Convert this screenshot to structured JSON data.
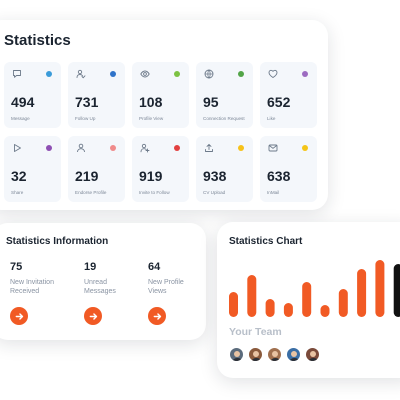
{
  "stats": {
    "title": "Statistics",
    "tiles": [
      {
        "icon": "chat-icon",
        "value": "494",
        "label": "Message",
        "dot_color": "#3a9bd9"
      },
      {
        "icon": "user-check-icon",
        "value": "731",
        "label": "Follow Up",
        "dot_color": "#2f73c9"
      },
      {
        "icon": "eye-icon",
        "value": "108",
        "label": "Profile View",
        "dot_color": "#7cc242"
      },
      {
        "icon": "globe-icon",
        "value": "95",
        "label": "Connection Request",
        "dot_color": "#52a447"
      },
      {
        "icon": "heart-icon",
        "value": "652",
        "label": "Like",
        "dot_color": "#9c6bc1"
      },
      {
        "icon": "play-icon",
        "value": "32",
        "label": "Share",
        "dot_color": "#8e4fb3"
      },
      {
        "icon": "user-icon",
        "value": "219",
        "label": "Endorse Profile",
        "dot_color": "#f08b8b"
      },
      {
        "icon": "user-plus-icon",
        "value": "919",
        "label": "Invite to Follow",
        "dot_color": "#e24040"
      },
      {
        "icon": "upload-icon",
        "value": "938",
        "label": "CV Upload",
        "dot_color": "#f7c21a"
      },
      {
        "icon": "mail-icon",
        "value": "638",
        "label": "InMail",
        "dot_color": "#f5c518"
      }
    ]
  },
  "info": {
    "title": "Statistics Information",
    "items": [
      {
        "value": "75",
        "label_line1": "New Invitation",
        "label_line2": "Received"
      },
      {
        "value": "19",
        "label_line1": "Unread",
        "label_line2": "Messages"
      },
      {
        "value": "64",
        "label_line1": "New Profile",
        "label_line2": "Views"
      }
    ],
    "button_icon": "arrow-right-icon",
    "accent": "#f15a24"
  },
  "chart": {
    "title": "Statistics Chart",
    "team_title": "Your Team"
  },
  "chart_data": {
    "type": "bar",
    "title": "Statistics Chart",
    "values": [
      25,
      42,
      18,
      14,
      35,
      12,
      28,
      48,
      57,
      53
    ],
    "colors": [
      "#f15a24",
      "#f15a24",
      "#f15a24",
      "#f15a24",
      "#f15a24",
      "#f15a24",
      "#f15a24",
      "#f15a24",
      "#f15a24",
      "#111111"
    ],
    "ylim": [
      0,
      60
    ],
    "grid": false
  },
  "team": [
    {
      "name": "avatar-1",
      "color": "#5b6b7c"
    },
    {
      "name": "avatar-2",
      "color": "#8a5a3c"
    },
    {
      "name": "avatar-3",
      "color": "#a0704f"
    },
    {
      "name": "avatar-4",
      "color": "#3a6ea5"
    },
    {
      "name": "avatar-5",
      "color": "#7a4a3a"
    }
  ]
}
